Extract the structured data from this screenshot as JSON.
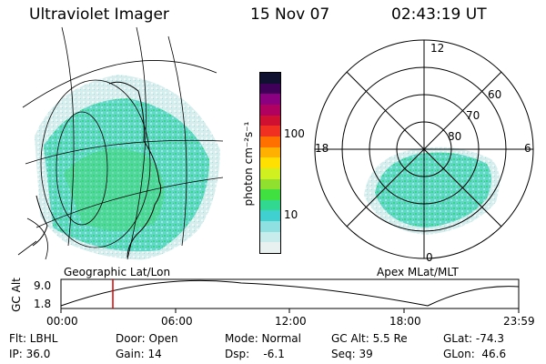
{
  "header": {
    "instrument": "Ultraviolet Imager",
    "date": "15 Nov 07",
    "time": "02:43:19 UT"
  },
  "left_panel": {
    "caption": "Geographic Lat/Lon"
  },
  "right_panel": {
    "caption": "Apex MLat/MLT",
    "mlt_labels": [
      "12",
      "18",
      "6",
      "0"
    ],
    "mlat_labels": [
      "60",
      "70",
      "80"
    ]
  },
  "colorbar": {
    "unit_label": "photon cm⁻²s⁻¹",
    "ticks": [
      "100",
      "10"
    ],
    "colors": [
      "#e8f0f0",
      "#c8ecec",
      "#8fe0e0",
      "#40d0d0",
      "#30d890",
      "#40e040",
      "#90e030",
      "#d0f020",
      "#ffe000",
      "#ffb000",
      "#ff7000",
      "#f03020",
      "#d01030",
      "#b00060",
      "#8a0080",
      "#40005a",
      "#101030"
    ]
  },
  "altitude_plot": {
    "ylabel": "GC Alt",
    "y_ticks": [
      "9.0",
      "1.8"
    ],
    "x_ticks": [
      "00:00",
      "06:00",
      "12:00",
      "18:00",
      "23:59"
    ],
    "current_time_hours": 2.72,
    "marker_color": "#dd0000"
  },
  "status": {
    "row1": {
      "filter": "Flt: LBHL",
      "door": "Door: Open",
      "mode": "Mode: Normal",
      "gc_alt": "GC Alt: 5.5 Re",
      "glat": "GLat: -74.3"
    },
    "row2": {
      "ip": "IP: 36.0",
      "gain": "Gain: 14",
      "dsp": "Dsp:    -6.1",
      "seq": "Seq: 39",
      "glon": "GLon:  46.6"
    }
  }
}
